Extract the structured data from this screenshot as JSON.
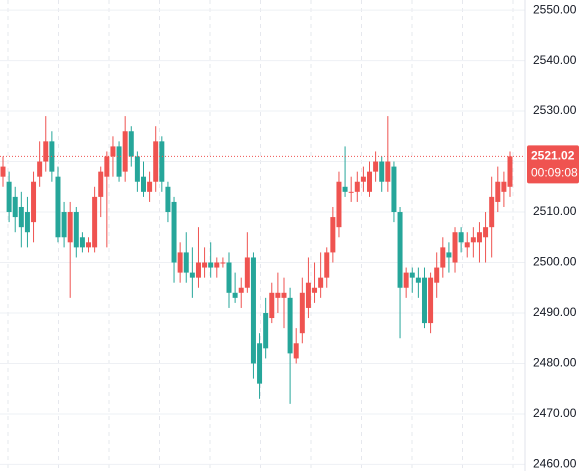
{
  "chart_data": {
    "type": "candlestick",
    "up_color": "#ef5350",
    "down_color": "#26a69a",
    "open": [
      2517,
      2516,
      2513,
      2511,
      2510,
      2508,
      2517,
      2520,
      2524,
      2517,
      2510,
      2504,
      2510,
      2505,
      2503,
      2503,
      2513,
      2517,
      2521,
      2523,
      2518,
      2526,
      2521,
      2517,
      2514,
      2516,
      2524,
      2515,
      2512,
      2498,
      2502,
      2498,
      2497,
      2499,
      2500,
      2499,
      2500,
      2500,
      2494,
      2494,
      2495,
      2501,
      2484,
      2490,
      2489,
      2493,
      2493,
      2493,
      2481,
      2486,
      2491,
      2494,
      2495,
      2497,
      2502,
      2507,
      2515,
      2514,
      2514,
      2516,
      2514,
      2518,
      2520,
      2516,
      2519,
      2510,
      2495,
      2498,
      2497,
      2497,
      2488,
      2496,
      2499,
      2502,
      2500,
      2506,
      2503,
      2504,
      2504,
      2505,
      2507,
      2512,
      2514,
      2515
    ],
    "high": [
      2521,
      2518,
      2515,
      2514,
      2513,
      2518,
      2524,
      2529,
      2526,
      2519,
      2512,
      2512,
      2511,
      2506,
      2505,
      2515,
      2519,
      2522,
      2525,
      2524,
      2529,
      2527,
      2522,
      2520,
      2518,
      2527,
      2525,
      2516,
      2513,
      2504,
      2506,
      2503,
      2507,
      2503,
      2504,
      2501,
      2501,
      2502,
      2498,
      2497,
      2506,
      2502,
      2486,
      2493,
      2496,
      2498,
      2497,
      2495,
      2487,
      2497,
      2501,
      2500,
      2502,
      2503,
      2511,
      2518,
      2523,
      2517,
      2518,
      2519,
      2520,
      2522,
      2521,
      2529,
      2520,
      2511,
      2499,
      2499,
      2499,
      2499,
      2498,
      2502,
      2505,
      2504,
      2507,
      2507,
      2506,
      2507,
      2508,
      2510,
      2517,
      2519,
      2518,
      2522
    ],
    "low": [
      2515,
      2508,
      2506,
      2503,
      2503,
      2504,
      2515,
      2518,
      2516,
      2504,
      2503,
      2493,
      2501,
      2502,
      2502,
      2502,
      2509,
      2503,
      2517,
      2516,
      2516,
      2519,
      2514,
      2513,
      2512,
      2514,
      2514,
      2508,
      2496,
      2496,
      2496,
      2493,
      2495,
      2497,
      2497,
      2497,
      2499,
      2491,
      2492,
      2491,
      2494,
      2477,
      2473,
      2481,
      2488,
      2490,
      2487,
      2472,
      2480,
      2484,
      2489,
      2492,
      2493,
      2495,
      2500,
      2505,
      2513,
      2512,
      2512,
      2514,
      2513,
      2516,
      2514,
      2514,
      2508,
      2485,
      2493,
      2494,
      2493,
      2487,
      2486,
      2493,
      2497,
      2498,
      2498,
      2502,
      2501,
      2501,
      2500,
      2500,
      2501,
      2510,
      2511,
      2513
    ],
    "close": [
      2519,
      2510,
      2509,
      2507,
      2506,
      2516,
      2520,
      2524,
      2518,
      2505,
      2505,
      2510,
      2503,
      2503,
      2504,
      2513,
      2518,
      2521,
      2523,
      2517,
      2526,
      2521,
      2516,
      2514,
      2516,
      2524,
      2516,
      2510,
      2500,
      2502,
      2498,
      2497,
      2500,
      2500,
      2499,
      2500,
      2500,
      2494,
      2493,
      2495,
      2501,
      2480,
      2476,
      2483,
      2494,
      2494,
      2494,
      2482,
      2484,
      2494,
      2496,
      2495,
      2497,
      2502,
      2509,
      2516,
      2514,
      2514,
      2516,
      2517,
      2518,
      2520,
      2516,
      2520,
      2510,
      2495,
      2498,
      2497,
      2496,
      2488,
      2497,
      2499,
      2503,
      2501,
      2506,
      2504,
      2504,
      2505,
      2506,
      2507,
      2513,
      2516,
      2516,
      2521.02
    ],
    "countdown": "00:09:08",
    "ylim": [
      2458.7,
      2552
    ],
    "yticks": [
      {
        "value": 2460,
        "label": "2460.00"
      },
      {
        "value": 2470,
        "label": "2470.00"
      },
      {
        "value": 2480,
        "label": "2480.00"
      },
      {
        "value": 2490,
        "label": "2490.00"
      },
      {
        "value": 2500,
        "label": "2500.00"
      },
      {
        "value": 2510,
        "label": "2510.00"
      },
      {
        "value": 2520,
        "label": "2520.00"
      },
      {
        "value": 2530,
        "label": "2530.00"
      },
      {
        "value": 2540,
        "label": "2540.00"
      },
      {
        "value": 2550,
        "label": "2550.00"
      }
    ],
    "grid": true
  }
}
